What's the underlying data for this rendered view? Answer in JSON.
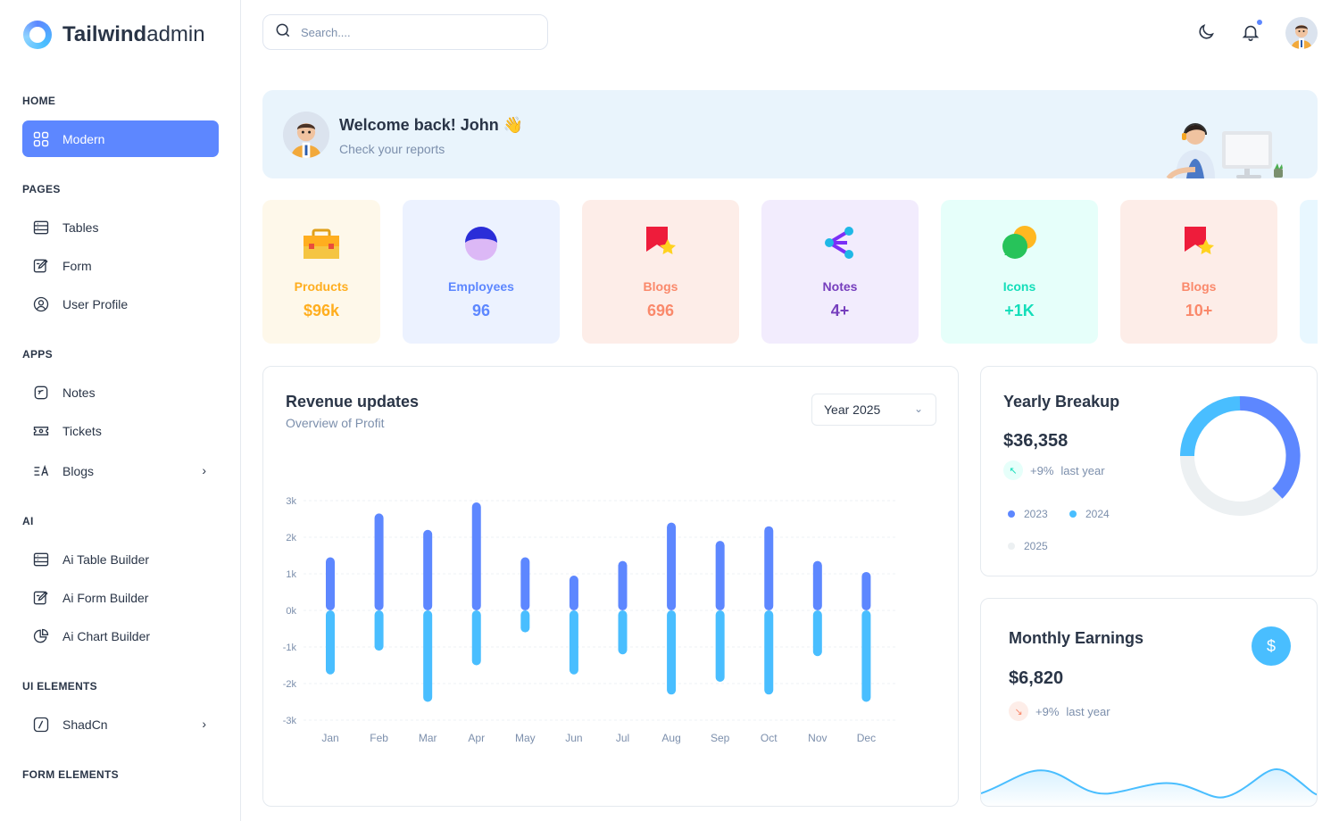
{
  "app": {
    "brand_bold": "Tailwind",
    "brand_light": "admin"
  },
  "sidebar": {
    "sections": [
      {
        "label": "HOME"
      },
      {
        "label": "PAGES"
      },
      {
        "label": "APPS"
      },
      {
        "label": "AI"
      },
      {
        "label": "UI ELEMENTS"
      },
      {
        "label": "FORM ELEMENTS"
      }
    ],
    "items": [
      {
        "label": "Modern",
        "icon": "grid-icon"
      },
      {
        "label": "Tables",
        "icon": "table-icon"
      },
      {
        "label": "Form",
        "icon": "form-icon"
      },
      {
        "label": "User Profile",
        "icon": "user-circle-icon"
      },
      {
        "label": "Notes",
        "icon": "notes-icon"
      },
      {
        "label": "Tickets",
        "icon": "ticket-icon"
      },
      {
        "label": "Blogs",
        "icon": "blog-icon"
      },
      {
        "label": "Ai Table Builder",
        "icon": "table-icon"
      },
      {
        "label": "Ai Form Builder",
        "icon": "form-icon"
      },
      {
        "label": "Ai Chart Builder",
        "icon": "pie-chart-icon"
      },
      {
        "label": "ShadCn",
        "icon": "shadcn-icon"
      }
    ]
  },
  "header": {
    "search_placeholder": "Search...."
  },
  "welcome": {
    "title": "Welcome back! John 👋",
    "subtitle": "Check your reports"
  },
  "stats": [
    {
      "label": "Products",
      "value": "$96k",
      "color": "#ffae1f",
      "bg": "#fef8ea"
    },
    {
      "label": "Employees",
      "value": "96",
      "color": "#5d87ff",
      "bg": "#ecf2ff"
    },
    {
      "label": "Blogs",
      "value": "696",
      "color": "#fa896b",
      "bg": "#fdede8"
    },
    {
      "label": "Notes",
      "value": "4+",
      "color": "#763ebd",
      "bg": "#f2ecfd"
    },
    {
      "label": "Icons",
      "value": "+1K",
      "color": "#13deb9",
      "bg": "#e6fffa"
    },
    {
      "label": "Blogs",
      "value": "10+",
      "color": "#fa896b",
      "bg": "#fdede8"
    }
  ],
  "revenue": {
    "title": "Revenue updates",
    "subtitle": "Overview of Profit",
    "year_select": "Year 2025"
  },
  "chart_data": {
    "type": "bar",
    "categories": [
      "Jan",
      "Feb",
      "Mar",
      "Apr",
      "May",
      "Jun",
      "Jul",
      "Aug",
      "Sep",
      "Oct",
      "Nov",
      "Dec"
    ],
    "series": [
      {
        "values": [
          1450,
          2650,
          2200,
          2950,
          1450,
          950,
          1350,
          2400,
          1900,
          2300,
          1350,
          1050
        ],
        "color": "#5d87ff"
      },
      {
        "values": [
          -1750,
          -1100,
          -2500,
          -1500,
          -600,
          -1750,
          -1200,
          -2300,
          -1950,
          -2300,
          -1250,
          -2500
        ],
        "color": "#49beff"
      }
    ],
    "yticks": [
      "3k",
      "2k",
      "1k",
      "0k",
      "-1k",
      "-2k",
      "-3k"
    ],
    "ylim": [
      -3000,
      3000
    ],
    "grid": true
  },
  "yearly": {
    "title": "Yearly Breakup",
    "value": "$36,358",
    "trend_pct": "+9%",
    "trend_label": "last year",
    "legend": [
      {
        "label": "2023",
        "color": "#5d87ff"
      },
      {
        "label": "2024",
        "color": "#49beff"
      },
      {
        "label": "2025",
        "color": "#ecf0f2"
      }
    ]
  },
  "monthly": {
    "title": "Monthly Earnings",
    "value": "$6,820",
    "trend_pct": "+9%",
    "trend_label": "last year"
  }
}
